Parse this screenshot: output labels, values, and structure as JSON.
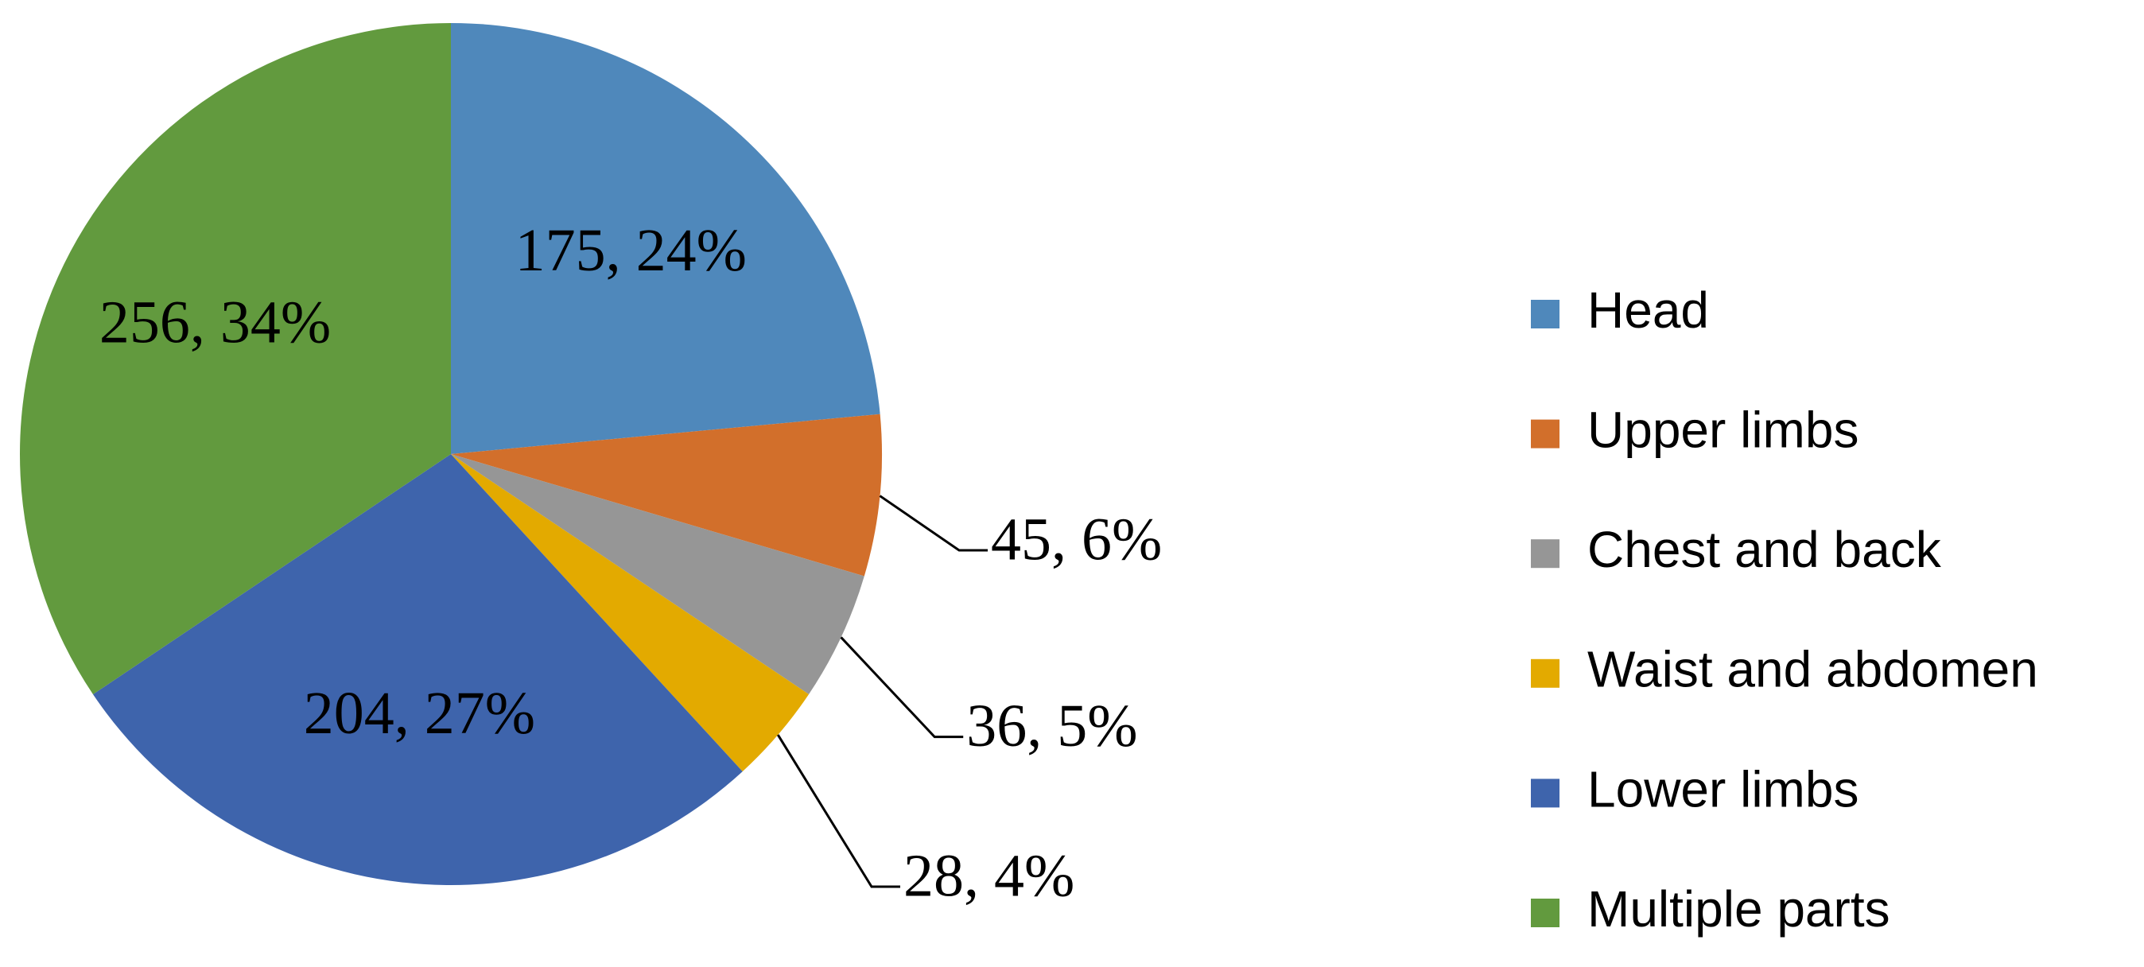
{
  "chart_data": {
    "type": "pie",
    "categories": [
      "Head",
      "Upper limbs",
      "Chest and back",
      "Waist and abdomen",
      "Lower limbs",
      "Multiple parts"
    ],
    "values": [
      175,
      45,
      36,
      28,
      204,
      256
    ],
    "value_labels": [
      "175, 24%",
      "45, 6%",
      "36, 5%",
      "28, 4%",
      "204, 27%",
      "256, 34%"
    ],
    "colors": [
      "#4f88bb",
      "#d26f2b",
      "#969696",
      "#e3aa00",
      "#3e64ac",
      "#629a3e"
    ],
    "legend": "right"
  }
}
